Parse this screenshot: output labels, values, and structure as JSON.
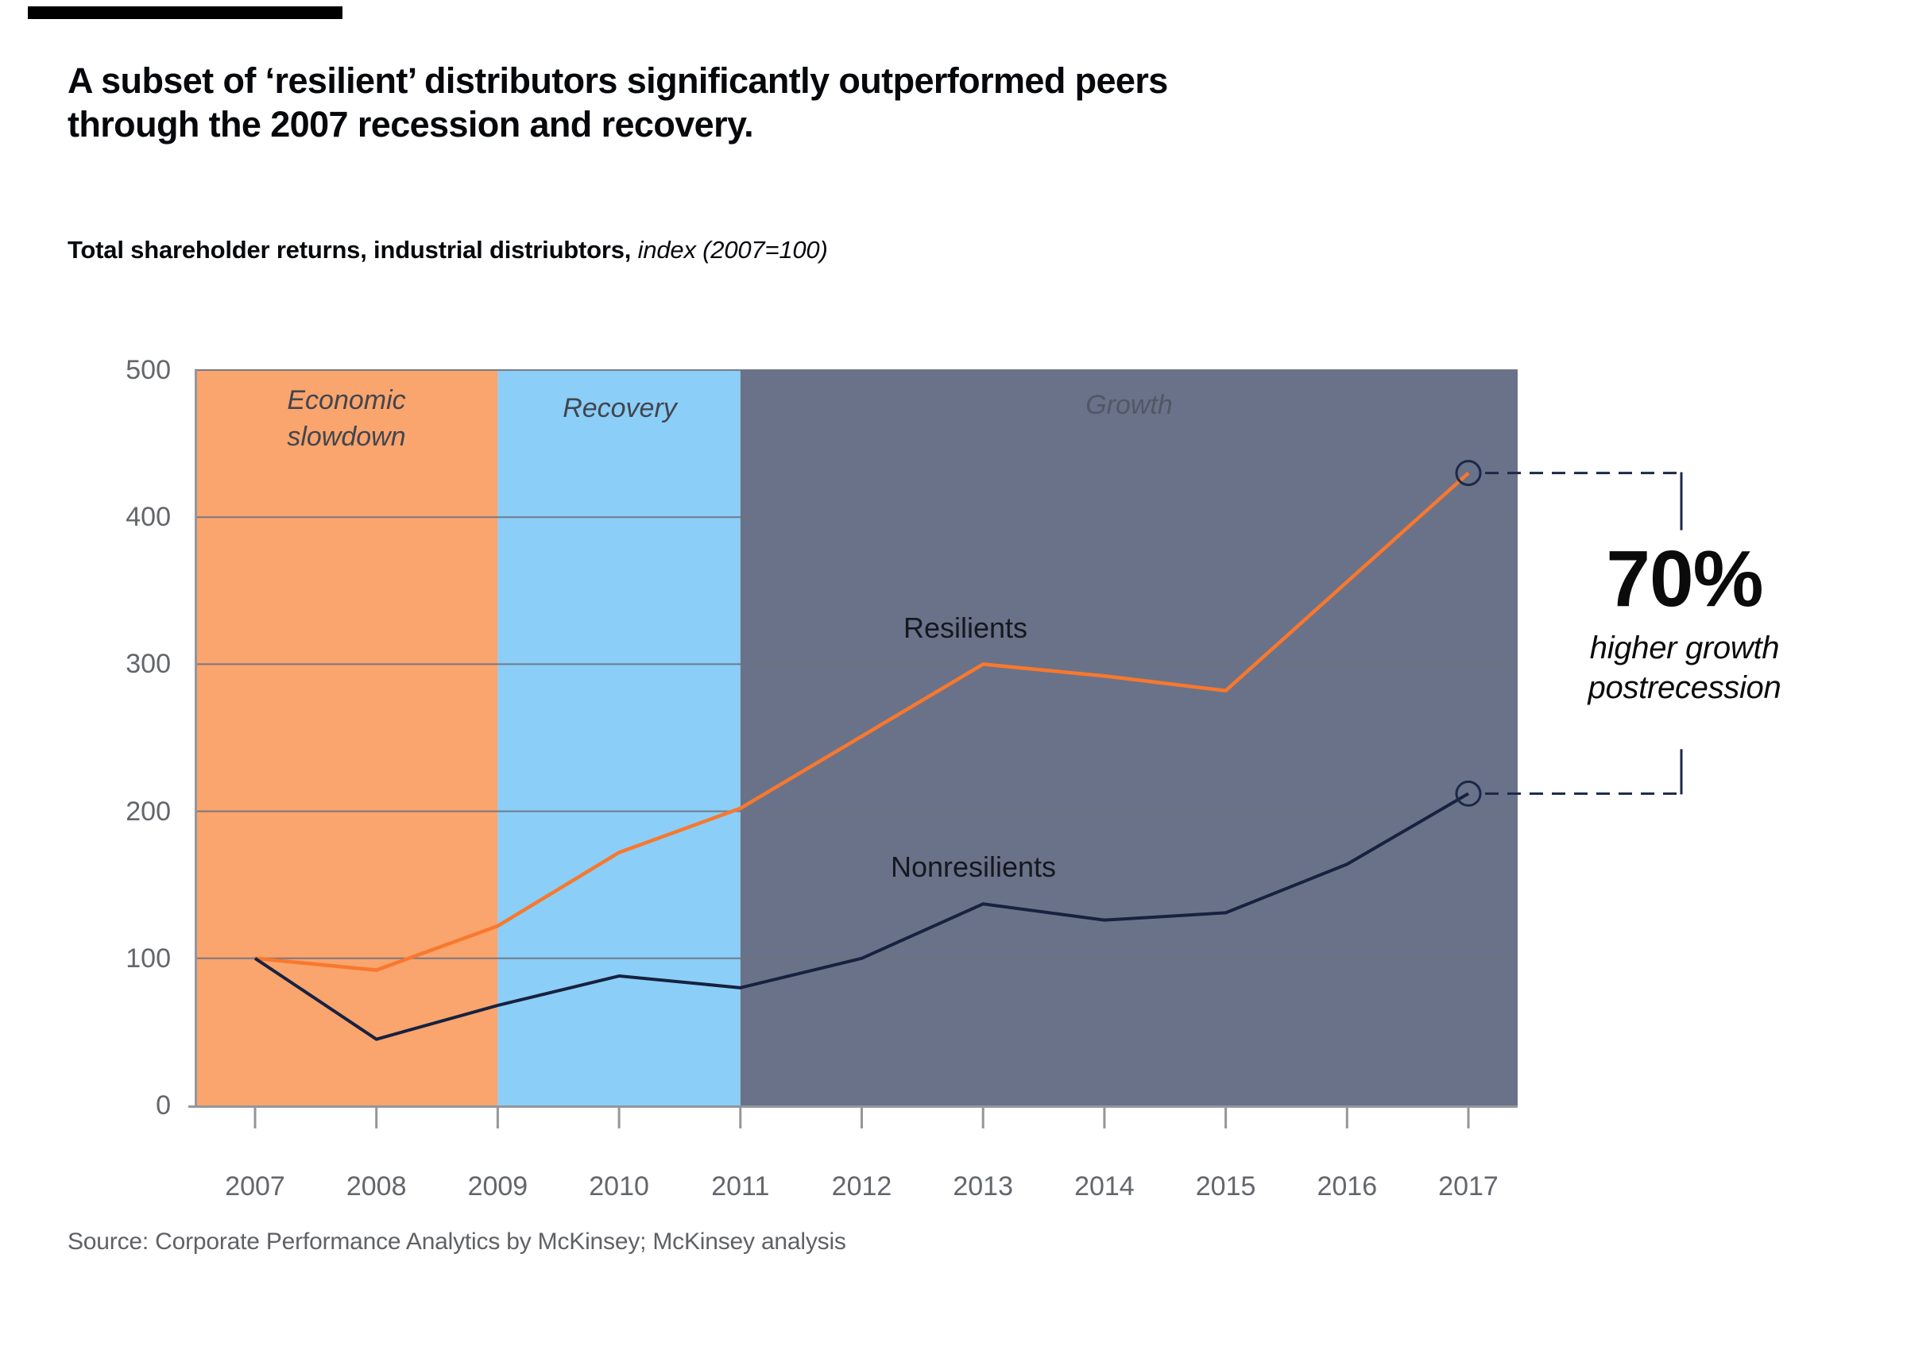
{
  "exhibit": {
    "title_lines": [
      "A subset of ‘resilient’ distributors significantly outperformed peers",
      "through the 2007 recession and recovery."
    ],
    "subtitle_bold": "Total shareholder returns, industrial distriubtors,",
    "subtitle_italic": "index (2007=100)",
    "source": "Source: Corporate Performance Analytics by McKinsey; McKinsey analysis"
  },
  "chart_data": {
    "type": "line",
    "title": "Total shareholder returns, industrial distriubtors, index (2007=100)",
    "x": [
      2007,
      2008,
      2009,
      2010,
      2011,
      2012,
      2013,
      2014,
      2015,
      2016,
      2017
    ],
    "ylim": [
      0,
      500
    ],
    "yticks": [
      0,
      100,
      200,
      300,
      400,
      500
    ],
    "grid": true,
    "legend_position": "inline-labels",
    "series": [
      {
        "name": "Resilients",
        "color": "#F8782D",
        "values": [
          100,
          92,
          122,
          172,
          202,
          251,
          300,
          292,
          282,
          356,
          430
        ]
      },
      {
        "name": "Nonresilients",
        "color": "#16223F",
        "values": [
          100,
          45,
          68,
          88,
          80,
          100,
          137,
          126,
          131,
          164,
          212
        ]
      }
    ],
    "bands": [
      {
        "label": "Economic slowdown",
        "color": "#FAA46E",
        "from_year": null,
        "to_year": 2009
      },
      {
        "label": "Recovery",
        "color": "#8BCEF7",
        "from_year": 2009,
        "to_year": 2011
      },
      {
        "label": "Growth",
        "color": "#6A7289",
        "from_year": 2011,
        "to_year": null
      }
    ],
    "annotation": {
      "headline": "70%",
      "caption": "higher growth postrecession"
    }
  },
  "colors": {
    "grid": "#6C7280",
    "axis": "#95969B",
    "navy": "#1B2847",
    "band_label": "#41464E",
    "growth_label": "#515766"
  }
}
